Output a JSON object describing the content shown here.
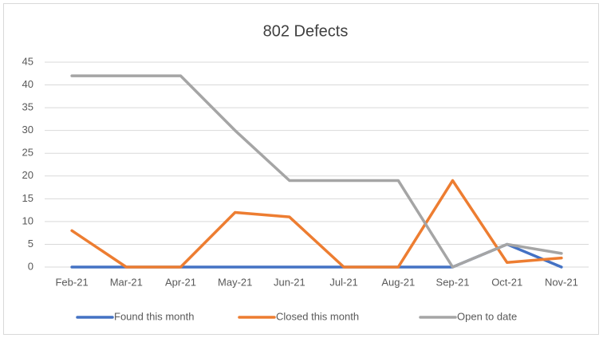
{
  "chart_data": {
    "type": "line",
    "title": "802 Defects",
    "categories": [
      "Feb-21",
      "Mar-21",
      "Apr-21",
      "May-21",
      "Jun-21",
      "Jul-21",
      "Aug-21",
      "Sep-21",
      "Oct-21",
      "Nov-21"
    ],
    "series": [
      {
        "name": "Found this month",
        "color": "#4472c4",
        "values": [
          0,
          0,
          0,
          0,
          0,
          0,
          0,
          0,
          5,
          0
        ]
      },
      {
        "name": "Closed this month",
        "color": "#ed7d31",
        "values": [
          8,
          0,
          0,
          12,
          11,
          0,
          0,
          19,
          1,
          2
        ]
      },
      {
        "name": "Open to date",
        "color": "#a5a5a5",
        "values": [
          42,
          42,
          42,
          30,
          19,
          19,
          19,
          0,
          5,
          3
        ]
      }
    ],
    "ylim": [
      0,
      45
    ],
    "yticks": [
      0,
      5,
      10,
      15,
      20,
      25,
      30,
      35,
      40,
      45
    ],
    "grid": true,
    "legend": "bottom"
  }
}
